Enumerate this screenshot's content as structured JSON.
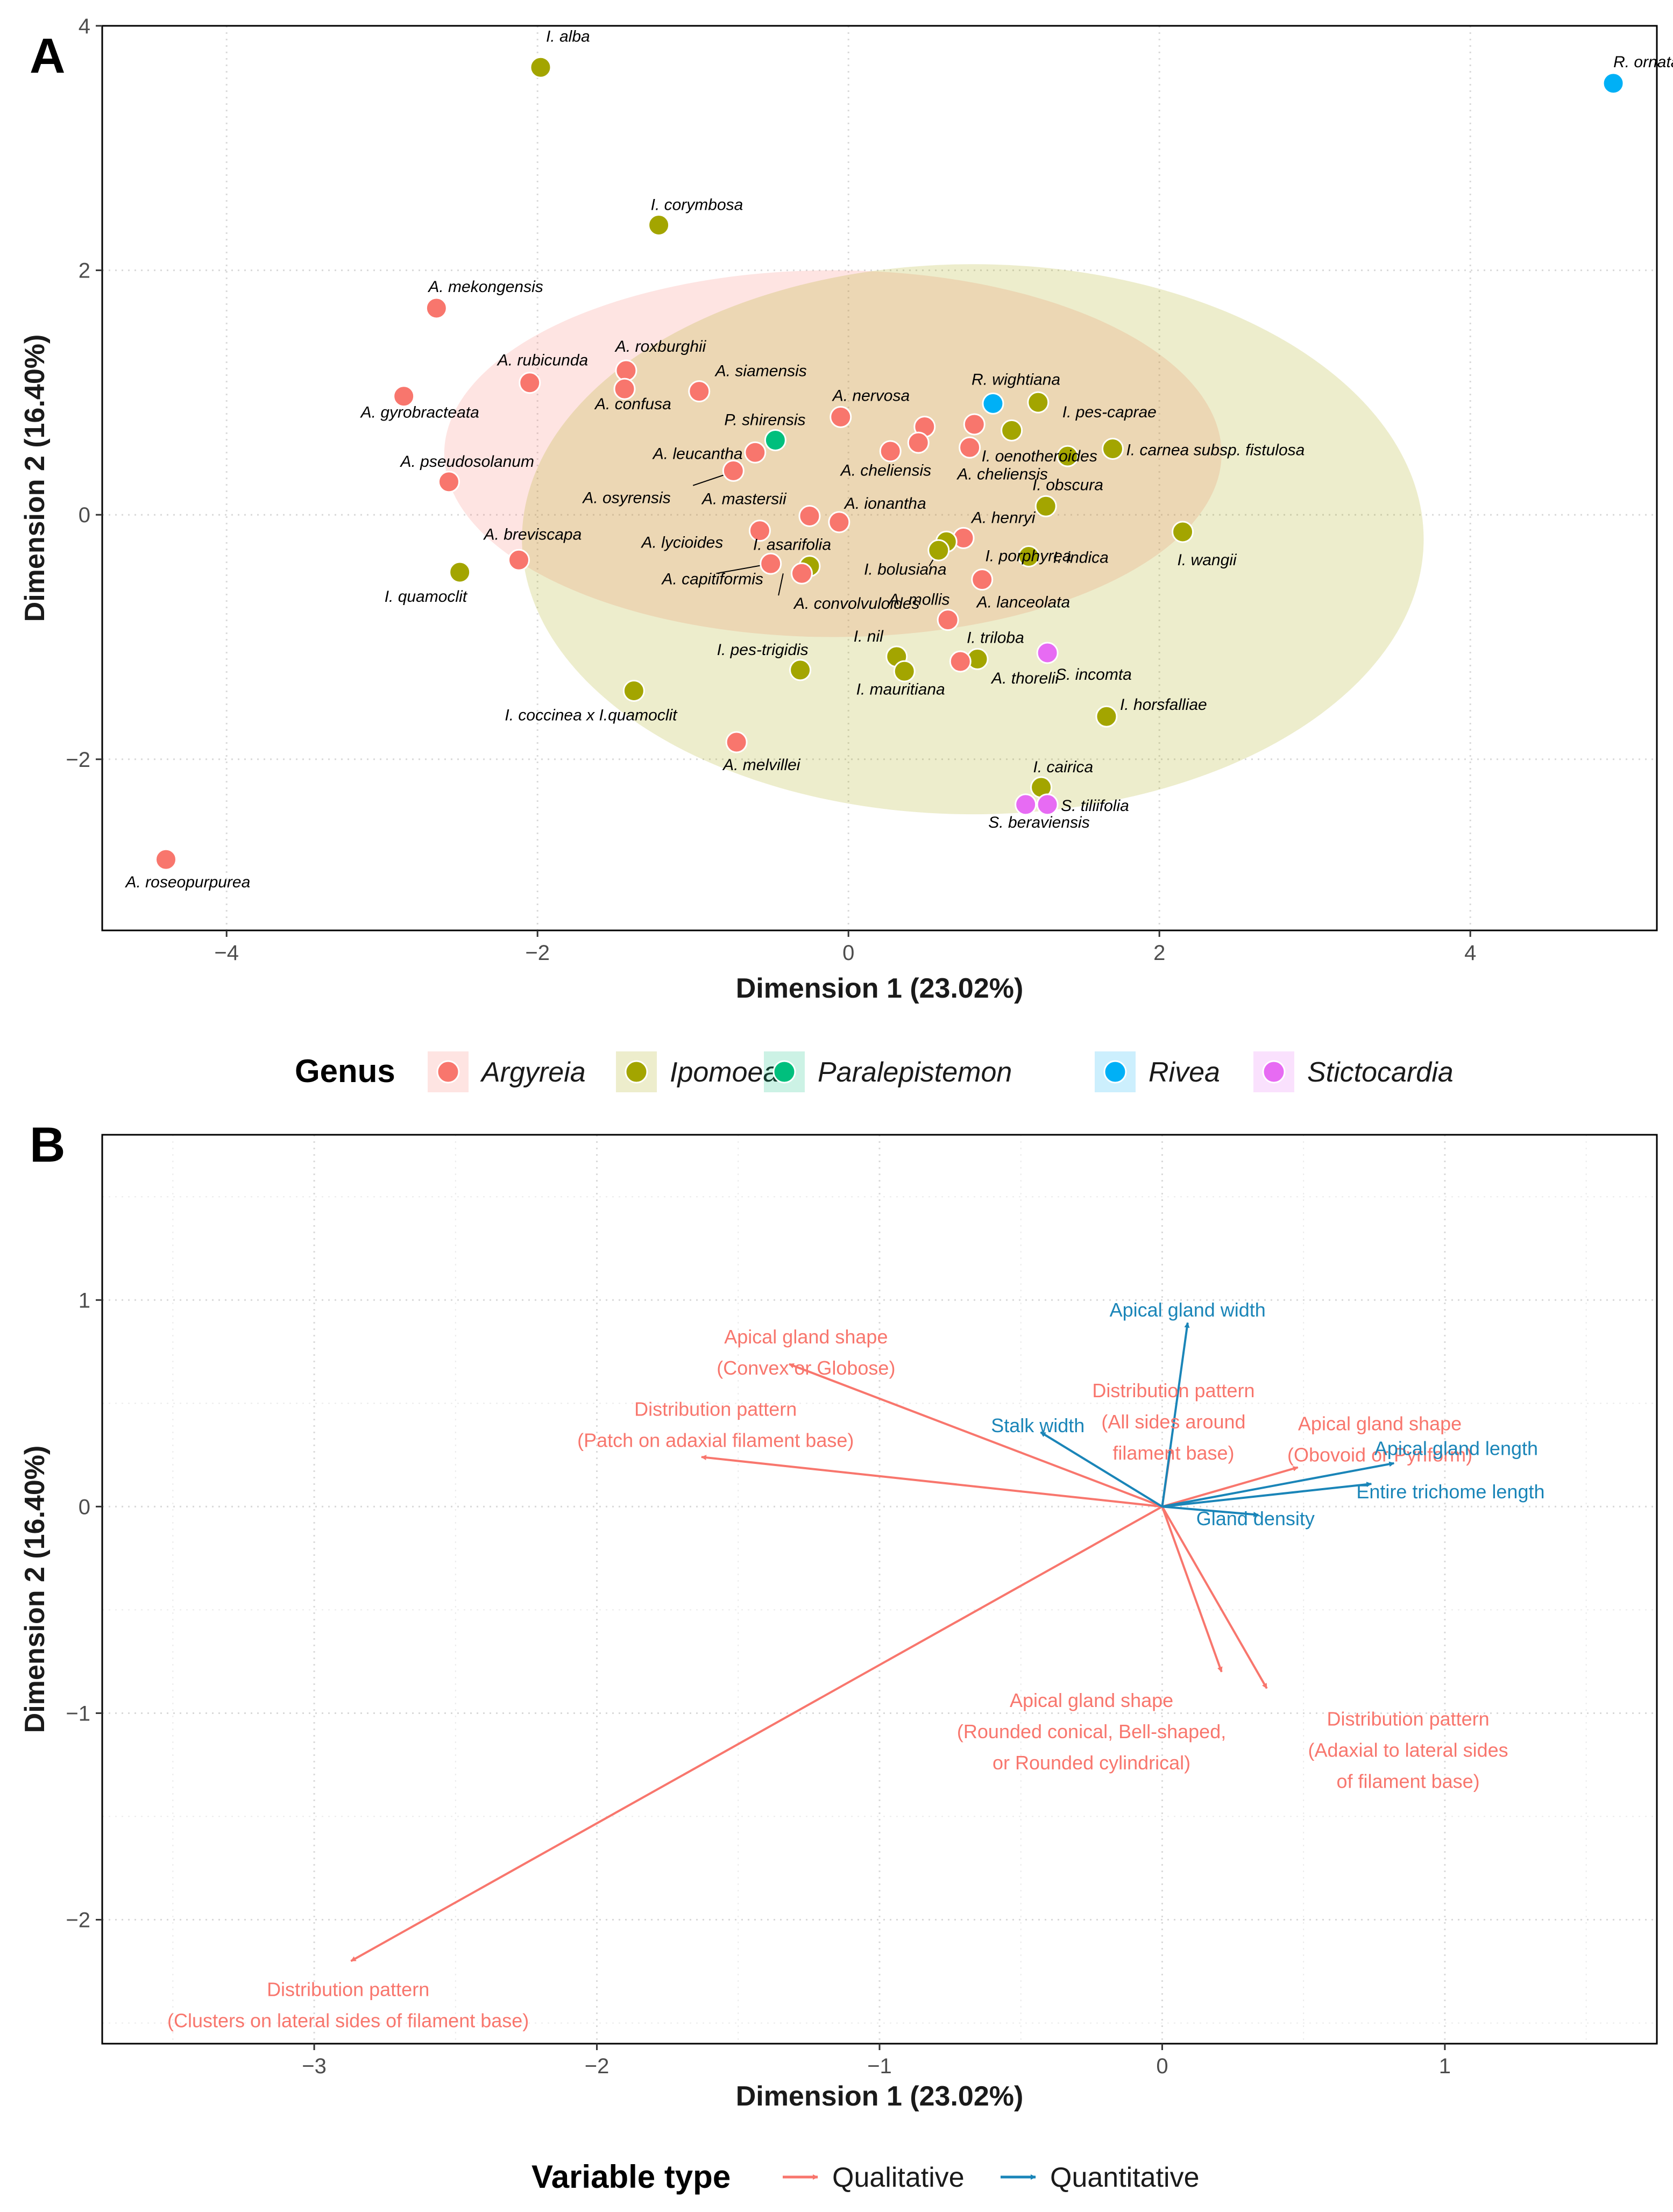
{
  "chart_data": [
    {
      "type": "scatter",
      "panel_label": "A",
      "xlabel": "Dimension 1 (23.02%)",
      "ylabel": "Dimension 2 (16.40%)",
      "xlim": [
        -4.8,
        5.2
      ],
      "ylim": [
        -3.4,
        4.0
      ],
      "x_ticks": [
        -4,
        -2,
        0,
        2,
        4
      ],
      "y_ticks": [
        -2,
        0,
        2,
        4
      ],
      "x_tick_labels": [
        "−4",
        "−2",
        "0",
        "2",
        "4"
      ],
      "y_tick_labels": [
        "−2",
        "0",
        "2",
        "4"
      ],
      "legend": {
        "title": "Genus",
        "entries": [
          {
            "key": "Argyreia",
            "label": "Argyreia",
            "color": "#F8766D"
          },
          {
            "key": "Ipomoea",
            "label": "Ipomoea",
            "color": "#A3A500"
          },
          {
            "key": "Paralepistemon",
            "label": "Paralepistemon",
            "color": "#00BF7D"
          },
          {
            "key": "Rivea",
            "label": "Rivea",
            "color": "#00B0F6"
          },
          {
            "key": "Stictocardia",
            "label": "Stictocardia",
            "color": "#E76BF3"
          }
        ]
      },
      "ellipses": [
        {
          "group": "Argyreia",
          "cx": -0.1,
          "cy": 0.5,
          "rx": 2.5,
          "ry": 1.5
        },
        {
          "group": "Ipomoea",
          "cx": 0.8,
          "cy": -0.2,
          "rx": 2.9,
          "ry": 2.25
        }
      ],
      "points": [
        {
          "label": "I. alba",
          "x": -1.98,
          "y": 3.66,
          "g": "Ipomoea"
        },
        {
          "label": "R. ornata",
          "x": 4.92,
          "y": 3.53,
          "g": "Rivea"
        },
        {
          "label": "I. corymbosa",
          "x": -1.22,
          "y": 2.37,
          "g": "Ipomoea"
        },
        {
          "label": "A. mekongensis",
          "x": -2.65,
          "y": 1.69,
          "g": "Argyreia"
        },
        {
          "label": "A. roxburghii",
          "x": -1.43,
          "y": 1.18,
          "g": "Argyreia"
        },
        {
          "label": "A. rubicunda",
          "x": -2.05,
          "y": 1.08,
          "g": "Argyreia"
        },
        {
          "label": "A. confusa",
          "x": -1.44,
          "y": 1.03,
          "g": "Argyreia"
        },
        {
          "label": "A. siamensis",
          "x": -0.96,
          "y": 1.01,
          "g": "Argyreia"
        },
        {
          "label": "A. gyrobracteata",
          "x": -2.86,
          "y": 0.97,
          "g": "Argyreia"
        },
        {
          "label": "R. wightiana",
          "x": 0.93,
          "y": 0.91,
          "g": "Rivea"
        },
        {
          "label": "I. pes-caprae",
          "x": 1.22,
          "y": 0.92,
          "g": "Ipomoea"
        },
        {
          "label": "A. nervosa",
          "x": -0.05,
          "y": 0.8,
          "g": "Argyreia"
        },
        {
          "label": "",
          "x": 0.49,
          "y": 0.72,
          "g": "Argyreia"
        },
        {
          "label": "",
          "x": 0.81,
          "y": 0.74,
          "g": "Argyreia"
        },
        {
          "label": "",
          "x": 1.05,
          "y": 0.69,
          "g": "Ipomoea"
        },
        {
          "label": "P. shirensis",
          "x": -0.47,
          "y": 0.61,
          "g": "Paralepistemon"
        },
        {
          "label": "",
          "x": 0.45,
          "y": 0.59,
          "g": "Argyreia"
        },
        {
          "label": "",
          "x": 0.78,
          "y": 0.55,
          "g": "Argyreia"
        },
        {
          "label": "",
          "x": 0.27,
          "y": 0.52,
          "g": "Argyreia"
        },
        {
          "label": "I. carnea subsp. fistulosa",
          "x": 1.7,
          "y": 0.54,
          "g": "Ipomoea"
        },
        {
          "label": "A. leucantha",
          "x": -0.6,
          "y": 0.51,
          "g": "Argyreia"
        },
        {
          "label": "I. oenotheroides",
          "x": 1.41,
          "y": 0.48,
          "g": "Ipomoea"
        },
        {
          "label": "A. osyrensis",
          "x": -0.74,
          "y": 0.36,
          "g": "Argyreia"
        },
        {
          "label": "A. pseudosolanum",
          "x": -2.57,
          "y": 0.27,
          "g": "Argyreia"
        },
        {
          "label": "I. obscura",
          "x": 1.27,
          "y": 0.07,
          "g": "Ipomoea"
        },
        {
          "label": "A. mastersii",
          "x": -0.25,
          "y": -0.01,
          "g": "Argyreia"
        },
        {
          "label": "A. ionantha",
          "x": -0.06,
          "y": -0.06,
          "g": "Argyreia"
        },
        {
          "label": "A. lycioides",
          "x": -0.57,
          "y": -0.13,
          "g": "Argyreia"
        },
        {
          "label": "I. wangii",
          "x": 2.15,
          "y": -0.14,
          "g": "Ipomoea"
        },
        {
          "label": "A. henryi",
          "x": 0.74,
          "y": -0.19,
          "g": "Argyreia"
        },
        {
          "label": "",
          "x": 0.63,
          "y": -0.22,
          "g": "Ipomoea"
        },
        {
          "label": "",
          "x": 0.58,
          "y": -0.29,
          "g": "Ipomoea"
        },
        {
          "label": "I. indica",
          "x": 1.16,
          "y": -0.34,
          "g": "Ipomoea"
        },
        {
          "label": "A. breviscapa",
          "x": -2.12,
          "y": -0.37,
          "g": "Argyreia"
        },
        {
          "label": "I. asarifolia",
          "x": -0.25,
          "y": -0.42,
          "g": "Ipomoea"
        },
        {
          "label": "",
          "x": -0.5,
          "y": -0.4,
          "g": "Argyreia"
        },
        {
          "label": "A. capitiformis",
          "x": -0.3,
          "y": -0.48,
          "g": "Argyreia"
        },
        {
          "label": "I. quamoclit",
          "x": -2.5,
          "y": -0.47,
          "g": "Ipomoea"
        },
        {
          "label": "A. lanceolata",
          "x": 0.86,
          "y": -0.53,
          "g": "Argyreia"
        },
        {
          "label": "A. mollis",
          "x": 0.64,
          "y": -0.86,
          "g": "Argyreia"
        },
        {
          "label": "I. triloba",
          "x": 0.83,
          "y": -1.18,
          "g": "Ipomoea"
        },
        {
          "label": "",
          "x": 0.72,
          "y": -1.2,
          "g": "Argyreia"
        },
        {
          "label": "S. incomta",
          "x": 1.28,
          "y": -1.13,
          "g": "Stictocardia"
        },
        {
          "label": "I. nil",
          "x": 0.31,
          "y": -1.16,
          "g": "Ipomoea"
        },
        {
          "label": "",
          "x": 0.36,
          "y": -1.28,
          "g": "Ipomoea"
        },
        {
          "label": "I. pes-trigidis",
          "x": -0.31,
          "y": -1.27,
          "g": "Ipomoea"
        },
        {
          "label": "I. coccinea x I.quamoclit",
          "x": -1.38,
          "y": -1.44,
          "g": "Ipomoea"
        },
        {
          "label": "I. horsfalliae",
          "x": 1.66,
          "y": -1.65,
          "g": "Ipomoea"
        },
        {
          "label": "A. melvillei",
          "x": -0.72,
          "y": -1.86,
          "g": "Argyreia"
        },
        {
          "label": "I. cairica",
          "x": 1.24,
          "y": -2.23,
          "g": "Ipomoea"
        },
        {
          "label": "S. tiliifolia",
          "x": 1.28,
          "y": -2.37,
          "g": "Stictocardia"
        },
        {
          "label": "",
          "x": 1.14,
          "y": -2.37,
          "g": "Stictocardia"
        },
        {
          "label": "A. roseopurpurea",
          "x": -4.39,
          "y": -2.82,
          "g": "Argyreia"
        }
      ],
      "extra_labels": [
        {
          "label": "A. cheliensis",
          "x": -0.05,
          "y": 0.32
        },
        {
          "label": "A. cheliensis",
          "x": 0.7,
          "y": 0.29
        },
        {
          "label": "I. porphyrea",
          "x": 0.88,
          "y": -0.38
        },
        {
          "label": "I. bolusiana",
          "x": 0.1,
          "y": -0.49
        },
        {
          "label": "A. convolvuloides",
          "x": -0.35,
          "y": -0.77
        },
        {
          "label": "I. mauritiana",
          "x": 0.05,
          "y": -1.47
        },
        {
          "label": "A. thorelii",
          "x": 0.92,
          "y": -1.38
        },
        {
          "label": "S. beraviensis",
          "x": 0.9,
          "y": -2.56
        }
      ]
    },
    {
      "type": "biplot",
      "panel_label": "B",
      "xlabel": "Dimension 1 (23.02%)",
      "ylabel": "Dimension 2 (16.40%)",
      "xlim": [
        -3.75,
        1.75
      ],
      "ylim": [
        -2.6,
        1.8
      ],
      "x_ticks": [
        -3,
        -2,
        -1,
        0,
        1
      ],
      "y_ticks": [
        -2,
        -1,
        0,
        1
      ],
      "x_tick_labels": [
        "−3",
        "−2",
        "−1",
        "0",
        "1"
      ],
      "y_tick_labels": [
        "−2",
        "−1",
        "0",
        "1"
      ],
      "legend": {
        "title": "Variable type",
        "entries": [
          {
            "label": "Qualitative",
            "color": "#F8766D"
          },
          {
            "label": "Quantitative",
            "color": "#1A85B8"
          }
        ]
      },
      "vectors": [
        {
          "lines": [
            "Apical gland shape",
            "(Convex or Globose)"
          ],
          "x": -1.32,
          "y": 0.69,
          "t": "Qualitative",
          "lx": -1.26,
          "ly": 0.79
        },
        {
          "lines": [
            "Distribution pattern",
            "(Patch on adaxial filament base)"
          ],
          "x": -1.63,
          "y": 0.24,
          "t": "Qualitative",
          "lx": -1.58,
          "ly": 0.44
        },
        {
          "lines": [
            "Distribution pattern",
            "(All sides around",
            "filament base)"
          ],
          "x": 0.03,
          "y": 0.28,
          "t": "Qualitative",
          "lx": 0.04,
          "ly": 0.53
        },
        {
          "lines": [
            "Apical gland shape",
            "(Obovoid or Pyriform)"
          ],
          "x": 0.48,
          "y": 0.19,
          "t": "Qualitative",
          "lx": 0.77,
          "ly": 0.37
        },
        {
          "lines": [
            "Apical gland shape",
            "(Rounded conical, Bell-shaped,",
            "or Rounded cylindrical)"
          ],
          "x": 0.21,
          "y": -0.8,
          "t": "Qualitative",
          "lx": -0.25,
          "ly": -0.97
        },
        {
          "lines": [
            "Distribution pattern",
            "(Adaxial to lateral sides",
            "of filament base)"
          ],
          "x": 0.37,
          "y": -0.88,
          "t": "Qualitative",
          "lx": 0.87,
          "ly": -1.06
        },
        {
          "lines": [
            "Distribution pattern",
            "(Clusters on lateral sides of filament base)"
          ],
          "x": -2.87,
          "y": -2.2,
          "t": "Qualitative",
          "lx": -2.88,
          "ly": -2.37
        },
        {
          "lines": [
            "Apical gland width"
          ],
          "x": 0.09,
          "y": 0.89,
          "t": "Quantitative",
          "lx": 0.09,
          "ly": 0.92
        },
        {
          "lines": [
            "Stalk width"
          ],
          "x": -0.43,
          "y": 0.36,
          "t": "Quantitative",
          "lx": -0.44,
          "ly": 0.36
        },
        {
          "lines": [
            "Apical gland length"
          ],
          "x": 0.82,
          "y": 0.21,
          "t": "Quantitative",
          "lx": 1.04,
          "ly": 0.25
        },
        {
          "lines": [
            "Entire trichome length"
          ],
          "x": 0.74,
          "y": 0.11,
          "t": "Quantitative",
          "lx": 1.02,
          "ly": 0.04
        },
        {
          "lines": [
            "Gland density"
          ],
          "x": 0.34,
          "y": -0.04,
          "t": "Quantitative",
          "lx": 0.33,
          "ly": -0.09
        }
      ]
    }
  ]
}
